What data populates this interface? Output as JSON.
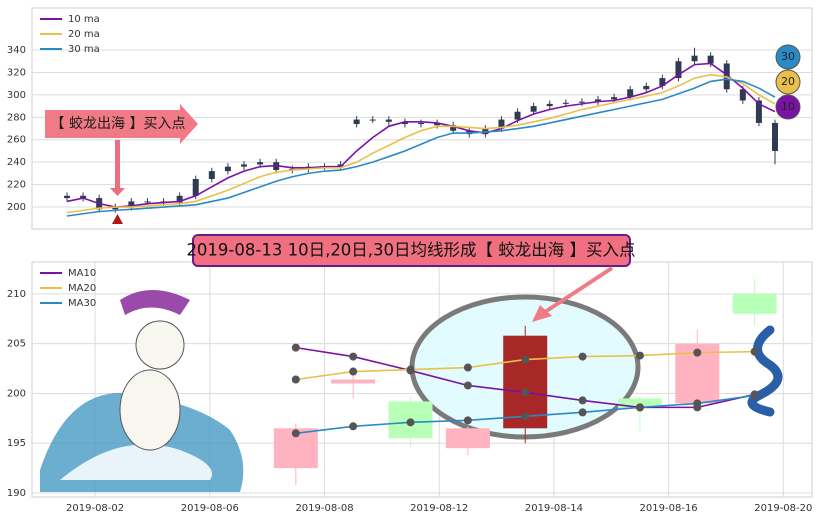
{
  "chart_data": [
    {
      "type": "candlestick",
      "ohlc": [
        [
          208,
          213,
          205,
          210
        ],
        [
          210,
          213,
          205,
          208
        ],
        [
          208,
          211,
          195,
          198
        ],
        [
          198,
          203,
          195,
          200
        ],
        [
          200,
          208,
          197,
          205
        ],
        [
          205,
          208,
          202,
          205
        ],
        [
          205,
          208,
          201,
          204
        ],
        [
          204,
          213,
          201,
          210
        ],
        [
          210,
          228,
          207,
          225
        ],
        [
          225,
          235,
          222,
          232
        ],
        [
          232,
          239,
          229,
          236
        ],
        [
          236,
          241,
          233,
          238
        ],
        [
          238,
          243,
          235,
          240
        ],
        [
          240,
          243,
          230,
          233
        ],
        [
          233,
          237,
          230,
          234
        ],
        [
          234,
          239,
          231,
          236
        ],
        [
          236,
          239,
          233,
          236
        ],
        [
          236,
          241,
          233,
          238
        ],
        [
          274,
          281,
          271,
          278
        ],
        [
          278,
          281,
          275,
          278
        ],
        [
          278,
          281,
          273,
          276
        ],
        [
          276,
          279,
          271,
          274
        ],
        [
          274,
          278,
          271,
          275
        ],
        [
          275,
          278,
          270,
          273
        ],
        [
          273,
          276,
          265,
          268
        ],
        [
          268,
          271,
          262,
          265
        ],
        [
          265,
          273,
          262,
          270
        ],
        [
          270,
          281,
          267,
          278
        ],
        [
          278,
          288,
          275,
          285
        ],
        [
          285,
          293,
          282,
          290
        ],
        [
          290,
          295,
          287,
          292
        ],
        [
          292,
          296,
          289,
          293
        ],
        [
          293,
          297,
          290,
          294
        ],
        [
          294,
          299,
          291,
          296
        ],
        [
          296,
          301,
          293,
          298
        ],
        [
          298,
          308,
          295,
          305
        ],
        [
          305,
          311,
          302,
          308
        ],
        [
          308,
          318,
          305,
          315
        ],
        [
          315,
          333,
          312,
          330
        ],
        [
          330,
          342,
          327,
          335
        ],
        [
          335,
          338,
          325,
          328
        ],
        [
          328,
          331,
          302,
          305
        ],
        [
          305,
          308,
          292,
          295
        ],
        [
          295,
          298,
          272,
          275
        ],
        [
          275,
          278,
          238,
          250
        ]
      ],
      "candle_color": "#2f3b55",
      "series": [
        {
          "name": "10 ma",
          "color": "#7b12a8",
          "values": [
            205,
            208,
            203,
            200,
            201,
            203,
            204,
            205,
            210,
            218,
            226,
            232,
            236,
            237,
            235,
            235,
            236,
            236,
            250,
            262,
            272,
            276,
            276,
            275,
            272,
            268,
            266,
            270,
            277,
            283,
            287,
            290,
            292,
            294,
            295,
            298,
            302,
            308,
            318,
            327,
            328,
            318,
            306,
            292,
            285
          ]
        },
        {
          "name": "20 ma",
          "color": "#e8c04a",
          "values": [
            195,
            197,
            199,
            200,
            200,
            201,
            202,
            203,
            205,
            210,
            215,
            221,
            227,
            231,
            233,
            234,
            235,
            235,
            240,
            248,
            255,
            262,
            268,
            272,
            272,
            271,
            270,
            271,
            273,
            276,
            279,
            283,
            287,
            290,
            293,
            296,
            299,
            302,
            308,
            315,
            318,
            316,
            310,
            300,
            292
          ]
        },
        {
          "name": "30 ma",
          "color": "#2a8ac4",
          "values": [
            192,
            194,
            196,
            197,
            198,
            199,
            200,
            201,
            202,
            205,
            208,
            213,
            218,
            223,
            227,
            230,
            232,
            233,
            236,
            240,
            245,
            250,
            256,
            262,
            266,
            266,
            267,
            268,
            270,
            272,
            275,
            278,
            281,
            284,
            287,
            290,
            293,
            296,
            301,
            306,
            312,
            314,
            312,
            306,
            298
          ]
        }
      ],
      "ylim": [
        180.4,
        377.5
      ],
      "yticks": [
        200,
        220,
        240,
        260,
        280,
        300,
        320,
        340
      ],
      "grid": true,
      "legend": "upper left",
      "annotations": {
        "callout": "【 蛟龙出海 】买入点",
        "badges": [
          "30",
          "20",
          "10"
        ]
      }
    },
    {
      "type": "candlestick",
      "ohlc": [
        [
          192.5,
          197,
          190.8,
          196.5
        ],
        [
          201,
          202.3,
          199.5,
          201.4
        ],
        [
          199.2,
          199.6,
          194.6,
          195.5
        ],
        [
          194.5,
          196.7,
          193.8,
          196.5
        ],
        [
          196.5,
          206.8,
          195,
          205.8
        ],
        null,
        [
          199.5,
          199.7,
          196.2,
          198.5
        ],
        [
          199,
          206.4,
          198.5,
          205
        ],
        [
          210,
          211.5,
          206.8,
          208
        ]
      ],
      "candle_colors": [
        "#ffb3c1",
        "#ffb3c1",
        "#b8ffb8",
        "#ffb3c1",
        "#a82828",
        "#ffb3c1",
        "#b8ffb8",
        "#ffb3c1",
        "#b8ffb8"
      ],
      "series": [
        {
          "name": "MA10",
          "color": "#7b12a8",
          "values": [
            204.6,
            203.7,
            202.3,
            200.8,
            200.1,
            199.3,
            198.6,
            198.6,
            199.9
          ]
        },
        {
          "name": "MA20",
          "color": "#e8c04a",
          "values": [
            201.4,
            202.2,
            202.4,
            202.6,
            203.4,
            203.7,
            203.8,
            204.1,
            204.2
          ]
        },
        {
          "name": "MA30",
          "color": "#2a8ac4",
          "values": [
            196.0,
            196.7,
            197.1,
            197.3,
            197.7,
            198.1,
            198.6,
            199.0,
            199.8
          ]
        }
      ],
      "markers": true,
      "xlim": [
        -4.6,
        9
      ],
      "xticks": [
        {
          "value": -3.5,
          "label": "2019-08-02"
        },
        {
          "value": -1.5,
          "label": "2019-08-06"
        },
        {
          "value": 0.5,
          "label": "2019-08-08"
        },
        {
          "value": 2.5,
          "label": "2019-08-12"
        },
        {
          "value": 4.5,
          "label": "2019-08-14"
        },
        {
          "value": 6.5,
          "label": "2019-08-16"
        },
        {
          "value": 8.5,
          "label": "2019-08-20"
        }
      ],
      "ylim": [
        189.6,
        213.2
      ],
      "yticks": [
        190,
        195,
        200,
        205,
        210
      ],
      "grid": true,
      "legend": "upper left",
      "annotation": "2019-08-13 10日,20日,30日均线形成【 蛟龙出海 】买入点"
    }
  ]
}
